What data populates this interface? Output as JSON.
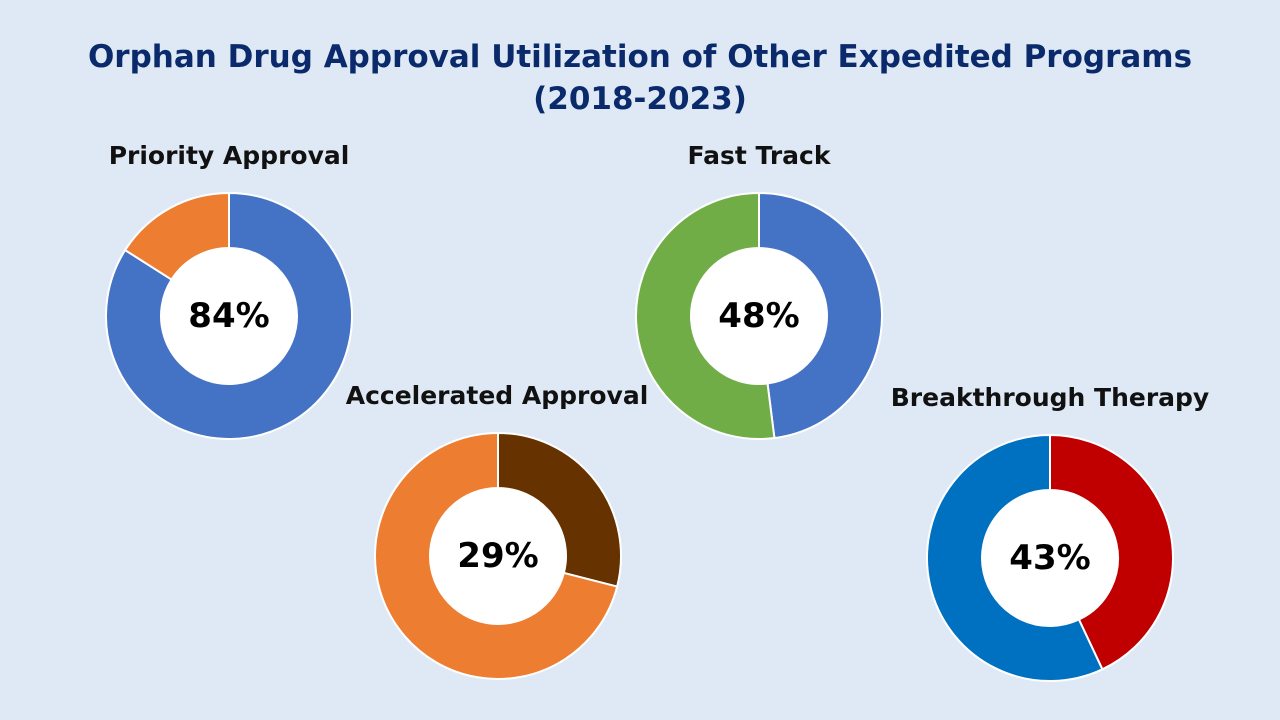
{
  "title": {
    "line1": "Orphan Drug Approval Utilization of Other Expedited Programs",
    "line2": "(2018-2023)"
  },
  "chart_data": [
    {
      "type": "pie",
      "title": "Priority Approval",
      "center_label": "84%",
      "slices": [
        {
          "value": 84,
          "color": "#4472c4"
        },
        {
          "value": 16,
          "color": "#ed7d31"
        }
      ]
    },
    {
      "type": "pie",
      "title": "Fast Track",
      "center_label": "48%",
      "slices": [
        {
          "value": 48,
          "color": "#4472c4"
        },
        {
          "value": 52,
          "color": "#70ad47"
        }
      ]
    },
    {
      "type": "pie",
      "title": "Accelerated Approval",
      "center_label": "29%",
      "slices": [
        {
          "value": 29,
          "color": "#663300"
        },
        {
          "value": 71,
          "color": "#ed7d31"
        }
      ]
    },
    {
      "type": "pie",
      "title": "Breakthrough Therapy",
      "center_label": "43%",
      "slices": [
        {
          "value": 43,
          "color": "#c00000"
        },
        {
          "value": 57,
          "color": "#0070c0"
        }
      ]
    }
  ]
}
